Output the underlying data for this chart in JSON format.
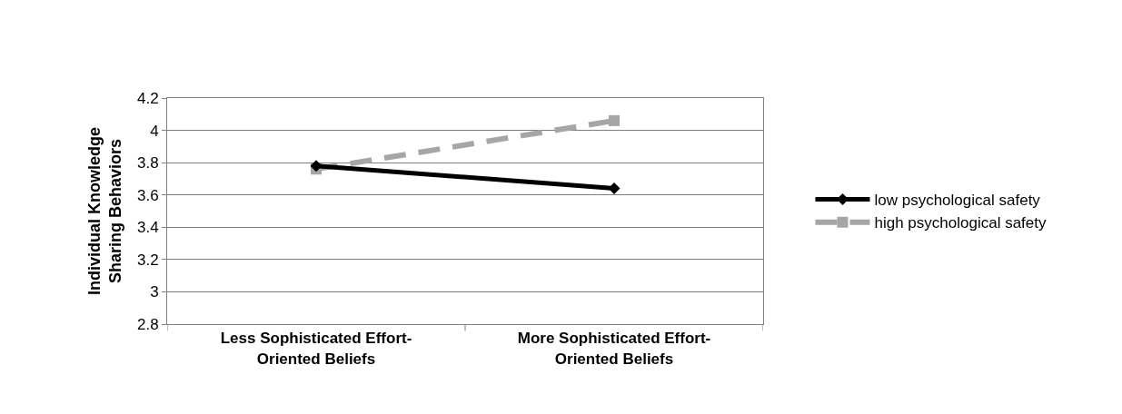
{
  "chart_data": {
    "type": "line",
    "ylabel": "Individual Knowledge\nSharing Behaviors",
    "categories": [
      "Less Sophisticated Effort-\nOriented Beliefs",
      "More Sophisticated Effort-\nOriented Beliefs"
    ],
    "series": [
      {
        "name": "low psychological safety",
        "color": "#000000",
        "values": [
          3.78,
          3.64
        ],
        "marker": "diamond",
        "line_style": "solid"
      },
      {
        "name": "high psychological safety",
        "color": "#a6a6a6",
        "values": [
          3.76,
          4.06
        ],
        "marker": "square",
        "line_style": "dashed"
      }
    ],
    "ylim": [
      2.8,
      4.2
    ],
    "yticks": [
      2.8,
      3,
      3.2,
      3.4,
      3.6,
      3.8,
      4,
      4.2
    ],
    "grid": "y",
    "legend": "right"
  }
}
